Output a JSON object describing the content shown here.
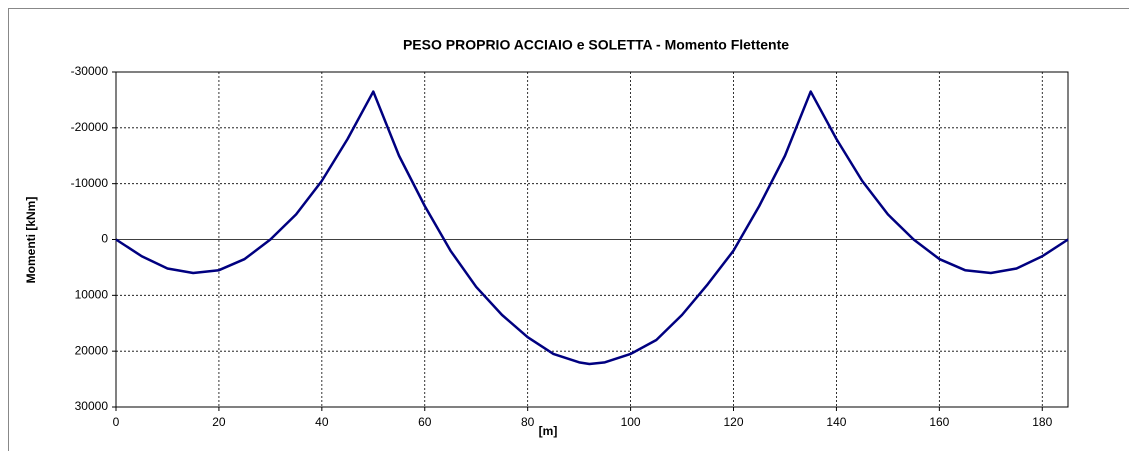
{
  "chart_data": {
    "type": "line",
    "title": "PESO PROPRIO ACCIAIO e SOLETTA - Momento Flettente",
    "x_label": "[m]",
    "y_label": "Momenti [kNm]",
    "x": [
      0,
      5,
      10,
      15,
      20,
      25,
      30,
      35,
      40,
      45,
      50,
      55,
      60,
      65,
      70,
      75,
      80,
      85,
      90,
      92,
      95,
      100,
      105,
      110,
      115,
      120,
      125,
      130,
      135,
      140,
      145,
      150,
      155,
      160,
      165,
      170,
      175,
      180,
      185
    ],
    "values": [
      0,
      3000,
      5200,
      6000,
      5500,
      3500,
      0,
      -4500,
      -10500,
      -18000,
      -26500,
      -15000,
      -6000,
      2000,
      8500,
      13500,
      17500,
      20500,
      22000,
      22300,
      22000,
      20500,
      18000,
      13500,
      8000,
      2000,
      -6000,
      -15000,
      -26500,
      -18000,
      -10500,
      -4500,
      0,
      3500,
      5500,
      6000,
      5200,
      3000,
      0
    ],
    "color": "#000080",
    "xlim": [
      0,
      185
    ],
    "xticks": [
      0,
      20,
      40,
      60,
      80,
      100,
      120,
      140,
      160,
      180
    ],
    "ylim": [
      -30000,
      30000
    ],
    "yticks": [
      -30000,
      -20000,
      -10000,
      0,
      10000,
      20000,
      30000
    ],
    "y_inverted": true,
    "grid": true
  }
}
